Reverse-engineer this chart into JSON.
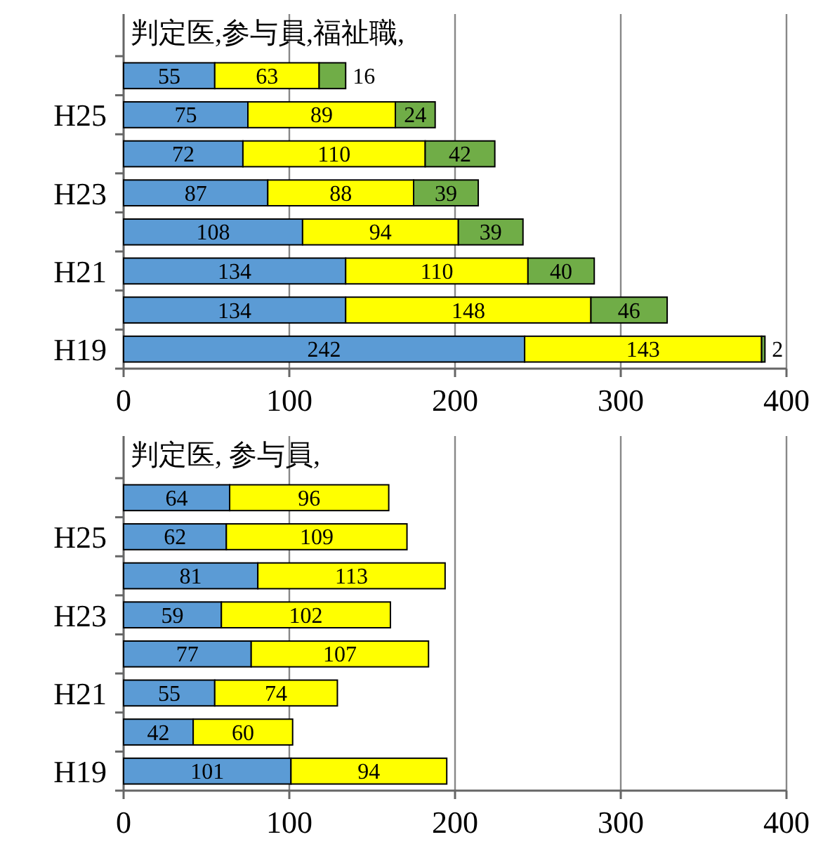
{
  "chart_data": [
    {
      "type": "bar",
      "orientation": "horizontal",
      "stacked": true,
      "title": "判定医,参与員,福祉職,",
      "categories": [
        null,
        "H25",
        null,
        "H23",
        null,
        "H21",
        null,
        "H19"
      ],
      "series": [
        {
          "color": "#5b9bd5",
          "values": [
            55,
            75,
            72,
            87,
            108,
            134,
            134,
            242
          ]
        },
        {
          "color": "#ffff00",
          "values": [
            63,
            89,
            110,
            88,
            94,
            110,
            148,
            143
          ]
        },
        {
          "color": "#70ad47",
          "values": [
            16,
            24,
            42,
            39,
            39,
            40,
            46,
            2
          ]
        }
      ],
      "xlim": [
        0,
        400
      ],
      "xticks": [
        0,
        100,
        200,
        300,
        400
      ],
      "grid": "x",
      "data_labels": true
    },
    {
      "type": "bar",
      "orientation": "horizontal",
      "stacked": true,
      "title": "判定医, 参与員,",
      "categories": [
        null,
        "H25",
        null,
        "H23",
        null,
        "H21",
        null,
        "H19"
      ],
      "series": [
        {
          "color": "#5b9bd5",
          "values": [
            64,
            62,
            81,
            59,
            77,
            55,
            42,
            101
          ]
        },
        {
          "color": "#ffff00",
          "values": [
            96,
            109,
            113,
            102,
            107,
            74,
            60,
            94
          ]
        }
      ],
      "xlim": [
        0,
        400
      ],
      "xticks": [
        0,
        100,
        200,
        300,
        400
      ],
      "grid": "x",
      "data_labels": true
    }
  ]
}
